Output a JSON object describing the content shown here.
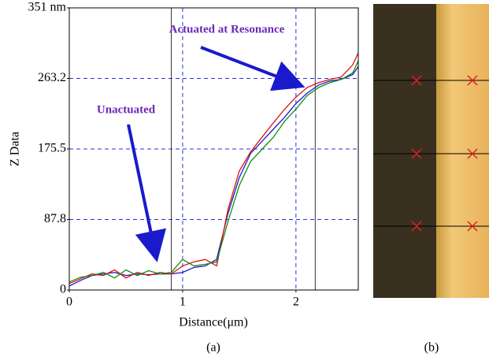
{
  "chart_data": {
    "type": "line",
    "y_label": "Z Data",
    "x_label": "Distance(μm)",
    "annotations": [
      "Actuated at Resonance",
      "Unactuated"
    ],
    "panel_labels": [
      "(a)",
      "(b)"
    ],
    "x": [
      0,
      0.1,
      0.2,
      0.3,
      0.4,
      0.5,
      0.6,
      0.7,
      0.8,
      0.9,
      1.0,
      1.1,
      1.2,
      1.3,
      1.4,
      1.5,
      1.6,
      1.7,
      1.8,
      1.9,
      2.0,
      2.1,
      2.2,
      2.3,
      2.4,
      2.5,
      2.55
    ],
    "series": [
      {
        "color": "#1a1acc",
        "values": [
          5,
          12,
          18,
          20,
          22,
          18,
          20,
          19,
          20,
          20,
          22,
          28,
          30,
          38,
          95,
          140,
          170,
          185,
          200,
          215,
          232,
          245,
          255,
          260,
          262,
          268,
          278
        ]
      },
      {
        "color": "#e01010",
        "values": [
          8,
          14,
          20,
          18,
          25,
          15,
          22,
          18,
          22,
          20,
          30,
          35,
          38,
          30,
          100,
          148,
          172,
          190,
          208,
          225,
          240,
          252,
          258,
          262,
          265,
          280,
          295
        ]
      },
      {
        "color": "#109010",
        "values": [
          10,
          16,
          18,
          22,
          15,
          25,
          18,
          24,
          20,
          22,
          38,
          30,
          32,
          35,
          85,
          130,
          160,
          175,
          190,
          210,
          225,
          242,
          252,
          258,
          262,
          270,
          285
        ]
      }
    ],
    "cursors": [
      0.9,
      2.17
    ],
    "xlim": [
      0,
      2.55
    ],
    "xticks": [
      0,
      1,
      2
    ],
    "ylim": [
      0,
      351
    ],
    "yticks": [
      0,
      87.8,
      175.5,
      263.2,
      {
        "value": 351,
        "label": "351 nm"
      }
    ],
    "grid": true,
    "grid_color": "#2233dd"
  }
}
